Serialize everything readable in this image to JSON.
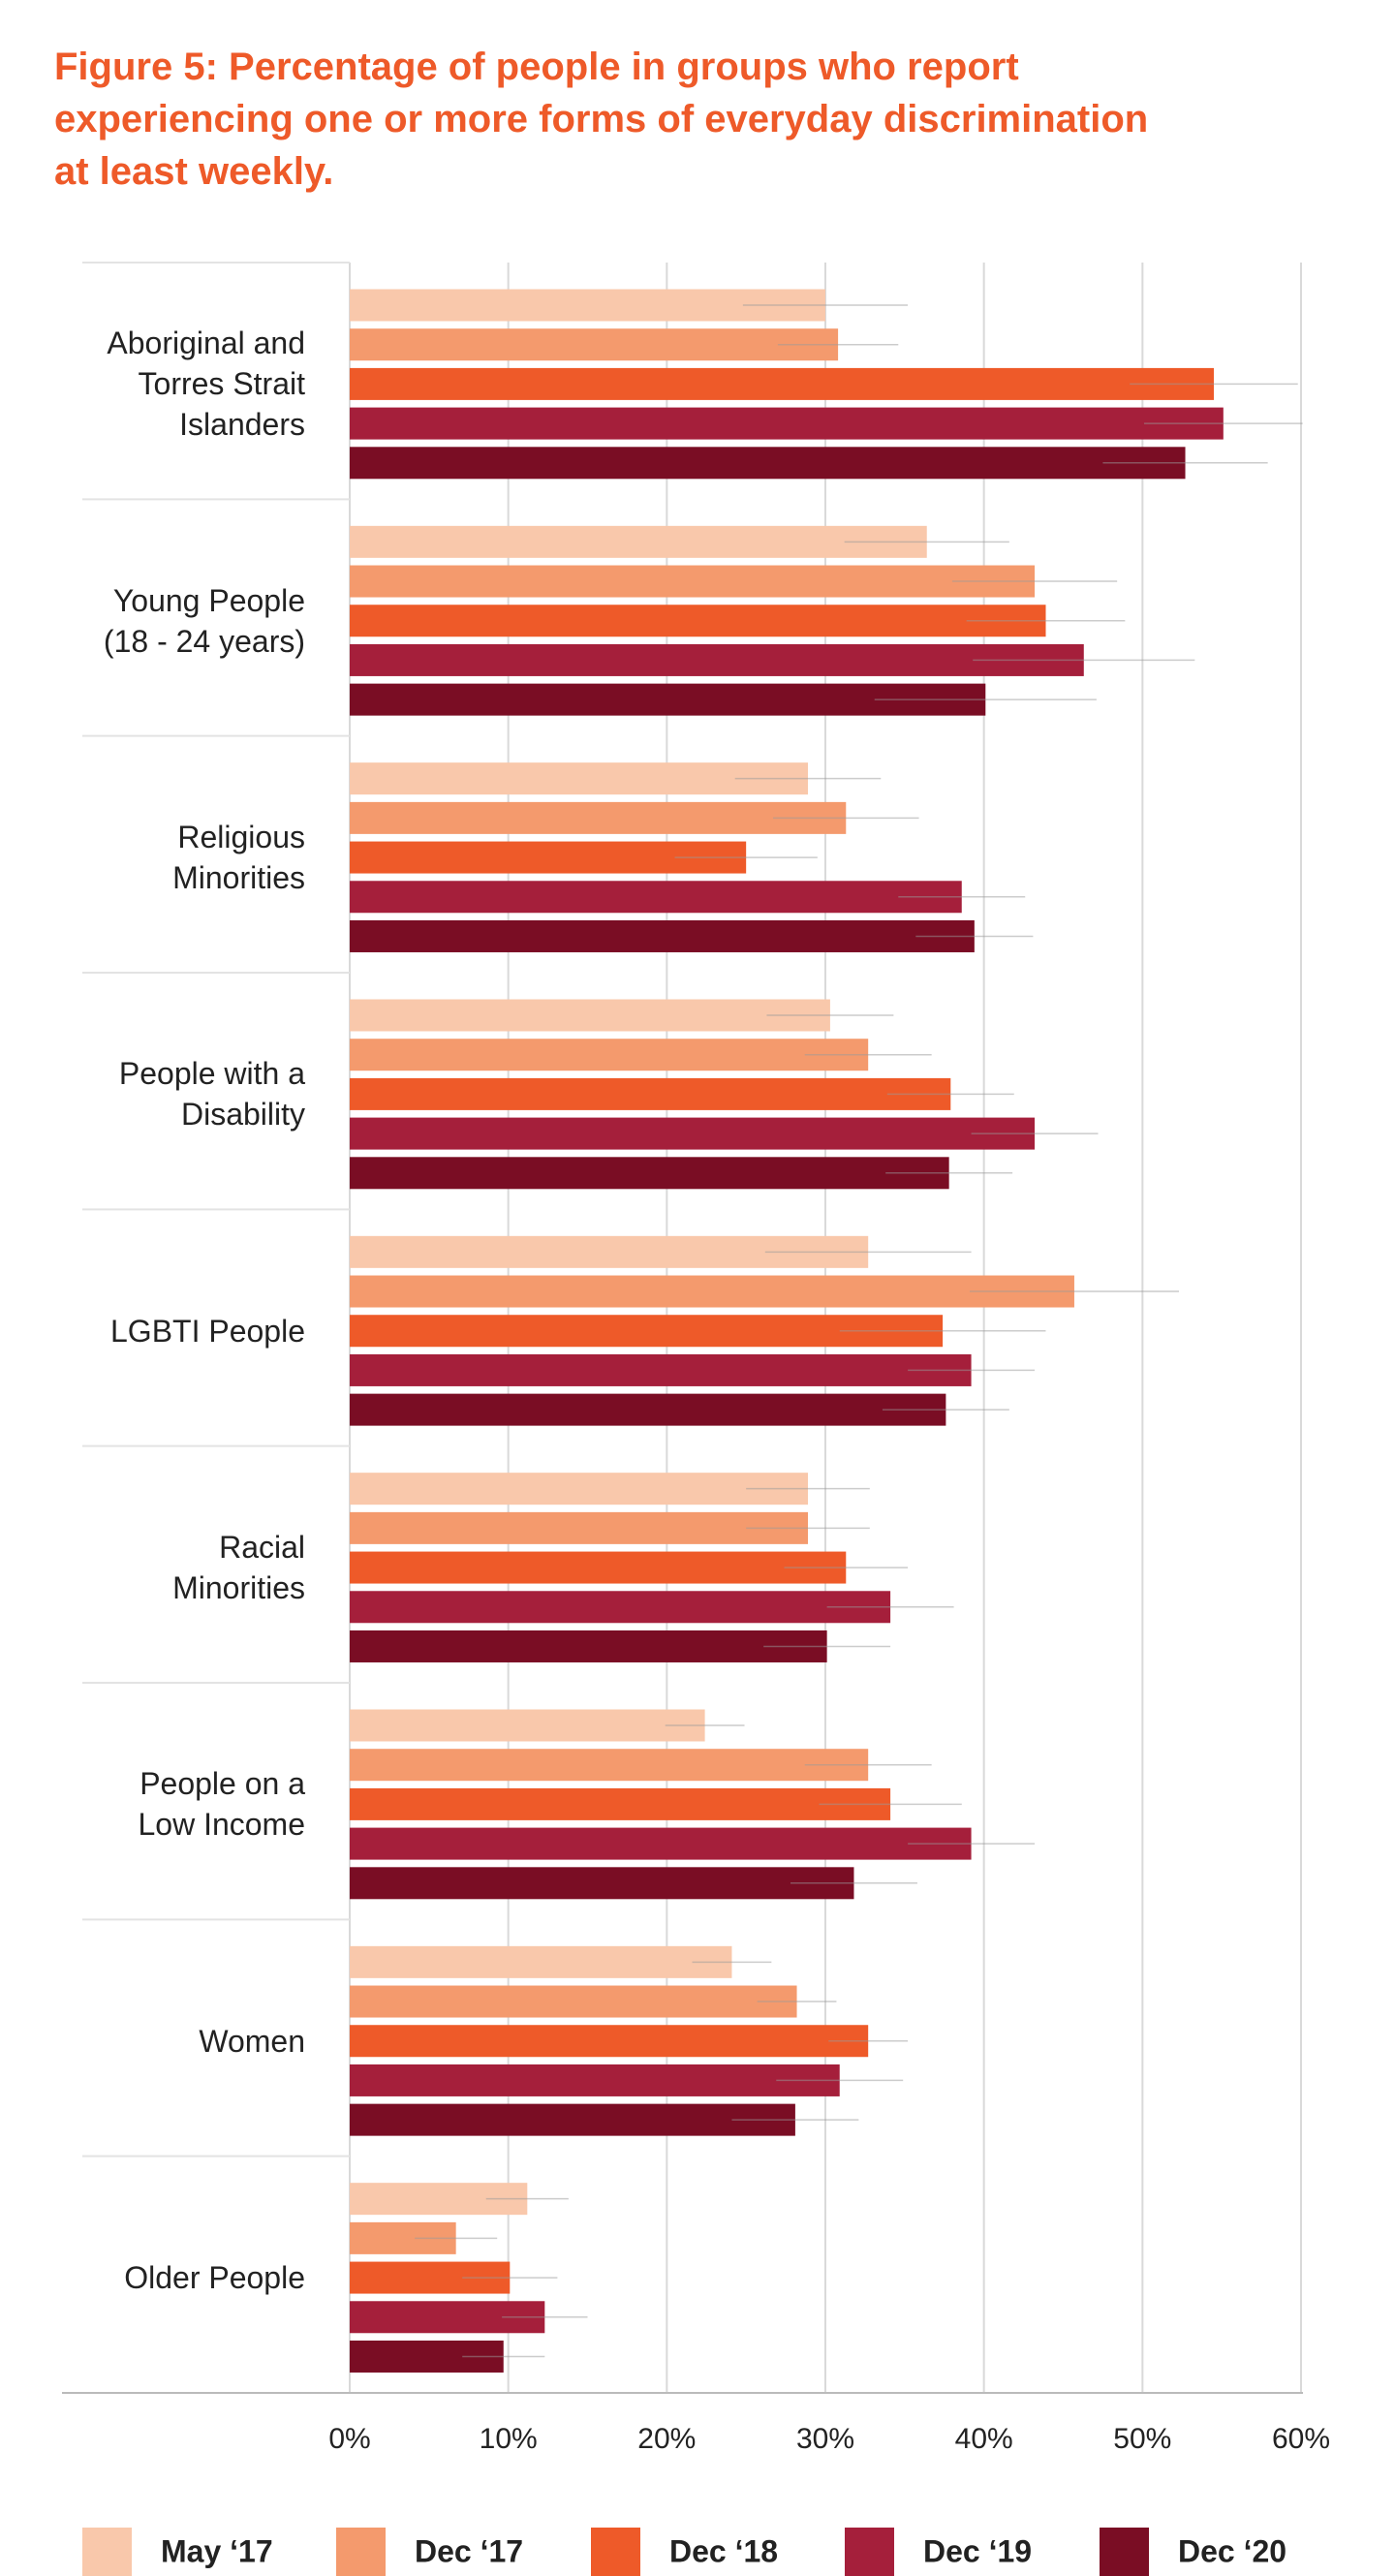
{
  "chart_data": {
    "type": "hbar",
    "title": "Figure 5: Percentage of people in groups who report\nexperiencing one or more forms of everyday discrimination\nat least weekly.",
    "categories": [
      "Aboriginal and\nTorres Strait\nIslanders",
      "Young People\n(18 - 24 years)",
      "Religious\nMinorities",
      "People with a\nDisability",
      "LGBTI People",
      "Racial\nMinorities",
      "People on a\nLow Income",
      "Women",
      "Older People"
    ],
    "series": [
      {
        "name": "May ‘17",
        "color": "#f9c8ab",
        "values": [
          30.0,
          36.4,
          28.9,
          30.3,
          32.7,
          28.9,
          22.4,
          24.1,
          11.2
        ],
        "errors": [
          5.2,
          5.2,
          4.6,
          4.0,
          6.5,
          3.9,
          2.5,
          2.5,
          2.6
        ]
      },
      {
        "name": "Dec ‘17",
        "color": "#f49a6d",
        "values": [
          30.8,
          43.2,
          31.3,
          32.7,
          45.7,
          28.9,
          32.7,
          28.2,
          6.7
        ],
        "errors": [
          3.8,
          5.2,
          4.6,
          4.0,
          6.6,
          3.9,
          4.0,
          2.5,
          2.6
        ]
      },
      {
        "name": "Dec ‘18",
        "color": "#ee5a29",
        "values": [
          54.5,
          43.9,
          25.0,
          37.9,
          37.4,
          31.3,
          34.1,
          32.7,
          10.1
        ],
        "errors": [
          5.3,
          5.0,
          4.5,
          4.0,
          6.5,
          3.9,
          4.5,
          2.5,
          3.0
        ]
      },
      {
        "name": "Dec ‘19",
        "color": "#a51f3b",
        "values": [
          55.1,
          46.3,
          38.6,
          43.2,
          39.2,
          34.1,
          39.2,
          30.9,
          12.3
        ],
        "errors": [
          5.0,
          7.0,
          4.0,
          4.0,
          4.0,
          4.0,
          4.0,
          4.0,
          2.7
        ]
      },
      {
        "name": "Dec ‘20",
        "color": "#7a0d24",
        "values": [
          52.7,
          40.1,
          39.4,
          37.8,
          37.6,
          30.1,
          31.8,
          28.1,
          9.7
        ],
        "errors": [
          5.2,
          7.0,
          3.7,
          4.0,
          4.0,
          4.0,
          4.0,
          4.0,
          2.6
        ]
      }
    ],
    "xlim": [
      0,
      60
    ],
    "xticks": [
      {
        "value": 0,
        "label": "0%"
      },
      {
        "value": 10,
        "label": "10%"
      },
      {
        "value": 20,
        "label": "20%"
      },
      {
        "value": 30,
        "label": "30%"
      },
      {
        "value": 40,
        "label": "40%"
      },
      {
        "value": 50,
        "label": "50%"
      },
      {
        "value": 60,
        "label": "60%"
      }
    ],
    "grid": true
  }
}
